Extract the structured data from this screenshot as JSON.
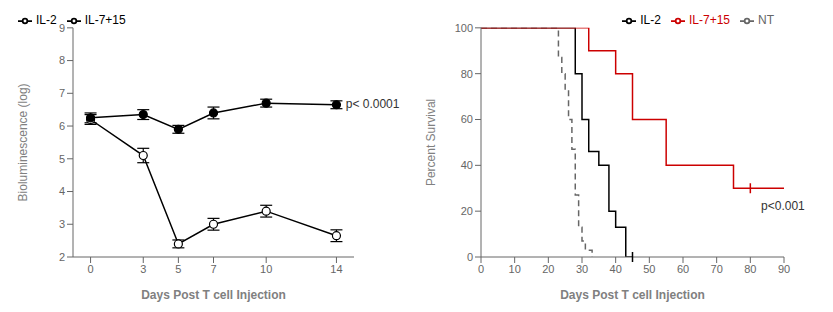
{
  "chart_data": [
    {
      "type": "line",
      "xlabel": "Days Post T cell Injection",
      "ylabel": "Bioluminescence (log)",
      "x": [
        0,
        3,
        5,
        7,
        10,
        14
      ],
      "xlim": [
        -1,
        15
      ],
      "xticks": [
        0,
        3,
        5,
        7,
        10,
        14
      ],
      "ylim": [
        2,
        9
      ],
      "yticks": [
        2,
        3,
        4,
        5,
        6,
        7,
        8,
        9
      ],
      "grid": false,
      "legend": "upper left",
      "series": [
        {
          "name": "IL-2",
          "color": "#000000",
          "marker": "open_circle",
          "line_style": "solid",
          "values": [
            6.2,
            5.1,
            2.4,
            3.0,
            3.4,
            2.65
          ],
          "errors": [
            0.15,
            0.22,
            0.12,
            0.18,
            0.18,
            0.18
          ]
        },
        {
          "name": "IL-7+15",
          "color": "#000000",
          "marker": "circle",
          "line_style": "solid",
          "values": [
            6.25,
            6.35,
            5.9,
            6.4,
            6.7,
            6.65
          ],
          "errors": [
            0.15,
            0.15,
            0.12,
            0.18,
            0.12,
            0.12
          ]
        }
      ],
      "annotations": [
        {
          "text": "p< 0.0001",
          "x": 14.3,
          "y": 6.65
        }
      ]
    },
    {
      "type": "step",
      "xlabel": "Days Post T cell Injection",
      "ylabel": "Percent Survival",
      "xlim": [
        0,
        90
      ],
      "xticks": [
        0,
        10,
        20,
        30,
        40,
        50,
        60,
        70,
        80,
        90
      ],
      "ylim": [
        0,
        100
      ],
      "yticks": [
        0,
        20,
        40,
        60,
        80,
        100
      ],
      "grid": false,
      "legend": "upper right",
      "series": [
        {
          "name": "NT",
          "color": "#666666",
          "line_style": "dashed",
          "x": [
            0,
            22,
            23,
            24,
            25,
            26,
            27,
            28,
            29,
            30,
            31,
            33
          ],
          "values": [
            100,
            100,
            87,
            80,
            73,
            60,
            47,
            27,
            13,
            7,
            3,
            0
          ]
        },
        {
          "name": "IL-2",
          "color": "#000000",
          "line_style": "solid",
          "x": [
            0,
            25,
            28,
            30,
            32,
            35,
            38,
            40,
            43,
            45
          ],
          "values": [
            100,
            100,
            80,
            60,
            46,
            40,
            20,
            13,
            0,
            0
          ],
          "censored": {
            "x": [
              45
            ],
            "y": [
              0
            ]
          }
        },
        {
          "name": "IL-7+15",
          "color": "#cc0000",
          "line_style": "solid",
          "x": [
            0,
            28,
            32,
            40,
            45,
            55,
            60,
            75,
            80,
            90
          ],
          "values": [
            100,
            100,
            90,
            80,
            60,
            40,
            40,
            30,
            30,
            30
          ],
          "censored": {
            "x": [
              80
            ],
            "y": [
              30
            ]
          }
        }
      ],
      "annotations": [
        {
          "text": "p<0.001",
          "x": 82,
          "y": 22
        }
      ]
    }
  ]
}
